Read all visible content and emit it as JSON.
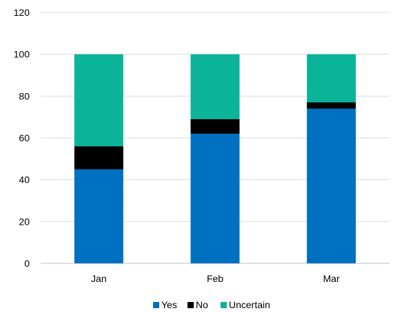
{
  "chart_data": {
    "type": "bar",
    "stacked": true,
    "categories": [
      "Jan",
      "Feb",
      "Mar"
    ],
    "series": [
      {
        "name": "Yes",
        "values": [
          45,
          62,
          74
        ],
        "color": "#0070C0"
      },
      {
        "name": "No",
        "values": [
          11,
          7,
          3
        ],
        "color": "#000000"
      },
      {
        "name": "Uncertain",
        "values": [
          44,
          31,
          23
        ],
        "color": "#0BB398"
      }
    ],
    "y_ticks": [
      "0",
      "20",
      "40",
      "60",
      "80",
      "100",
      "120"
    ],
    "ylim": [
      0,
      120
    ],
    "grid": true,
    "legend_position": "bottom"
  }
}
